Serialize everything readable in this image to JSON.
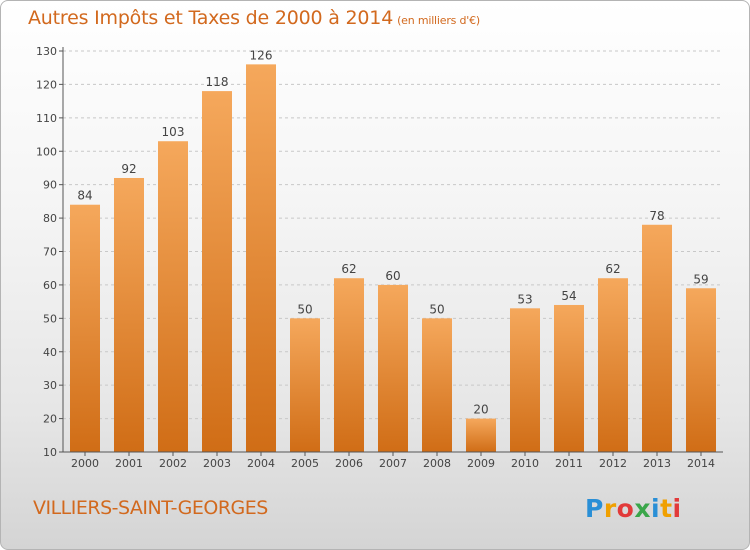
{
  "header": {
    "title": "Autres Impôts et Taxes de 2000 à 2014",
    "unit": "(en milliers d'€)"
  },
  "commune": "VILLIERS-SAINT-GEORGES",
  "brand": "Proxiti",
  "colors": {
    "accent": "#d2691e",
    "bar_top": "#f5a85c",
    "bar_bottom": "#d06d16",
    "grid": "#c8c8c8"
  },
  "chart_data": {
    "type": "bar",
    "categories": [
      "2000",
      "2001",
      "2002",
      "2003",
      "2004",
      "2005",
      "2006",
      "2007",
      "2008",
      "2009",
      "2010",
      "2011",
      "2012",
      "2013",
      "2014"
    ],
    "values": [
      84,
      92,
      103,
      118,
      126,
      50,
      62,
      60,
      50,
      20,
      53,
      54,
      62,
      78,
      59
    ],
    "ylim": [
      10,
      130
    ],
    "yticks": [
      10,
      20,
      30,
      40,
      50,
      60,
      70,
      80,
      90,
      100,
      110,
      120,
      130
    ],
    "grid": true,
    "data_labels": true
  }
}
